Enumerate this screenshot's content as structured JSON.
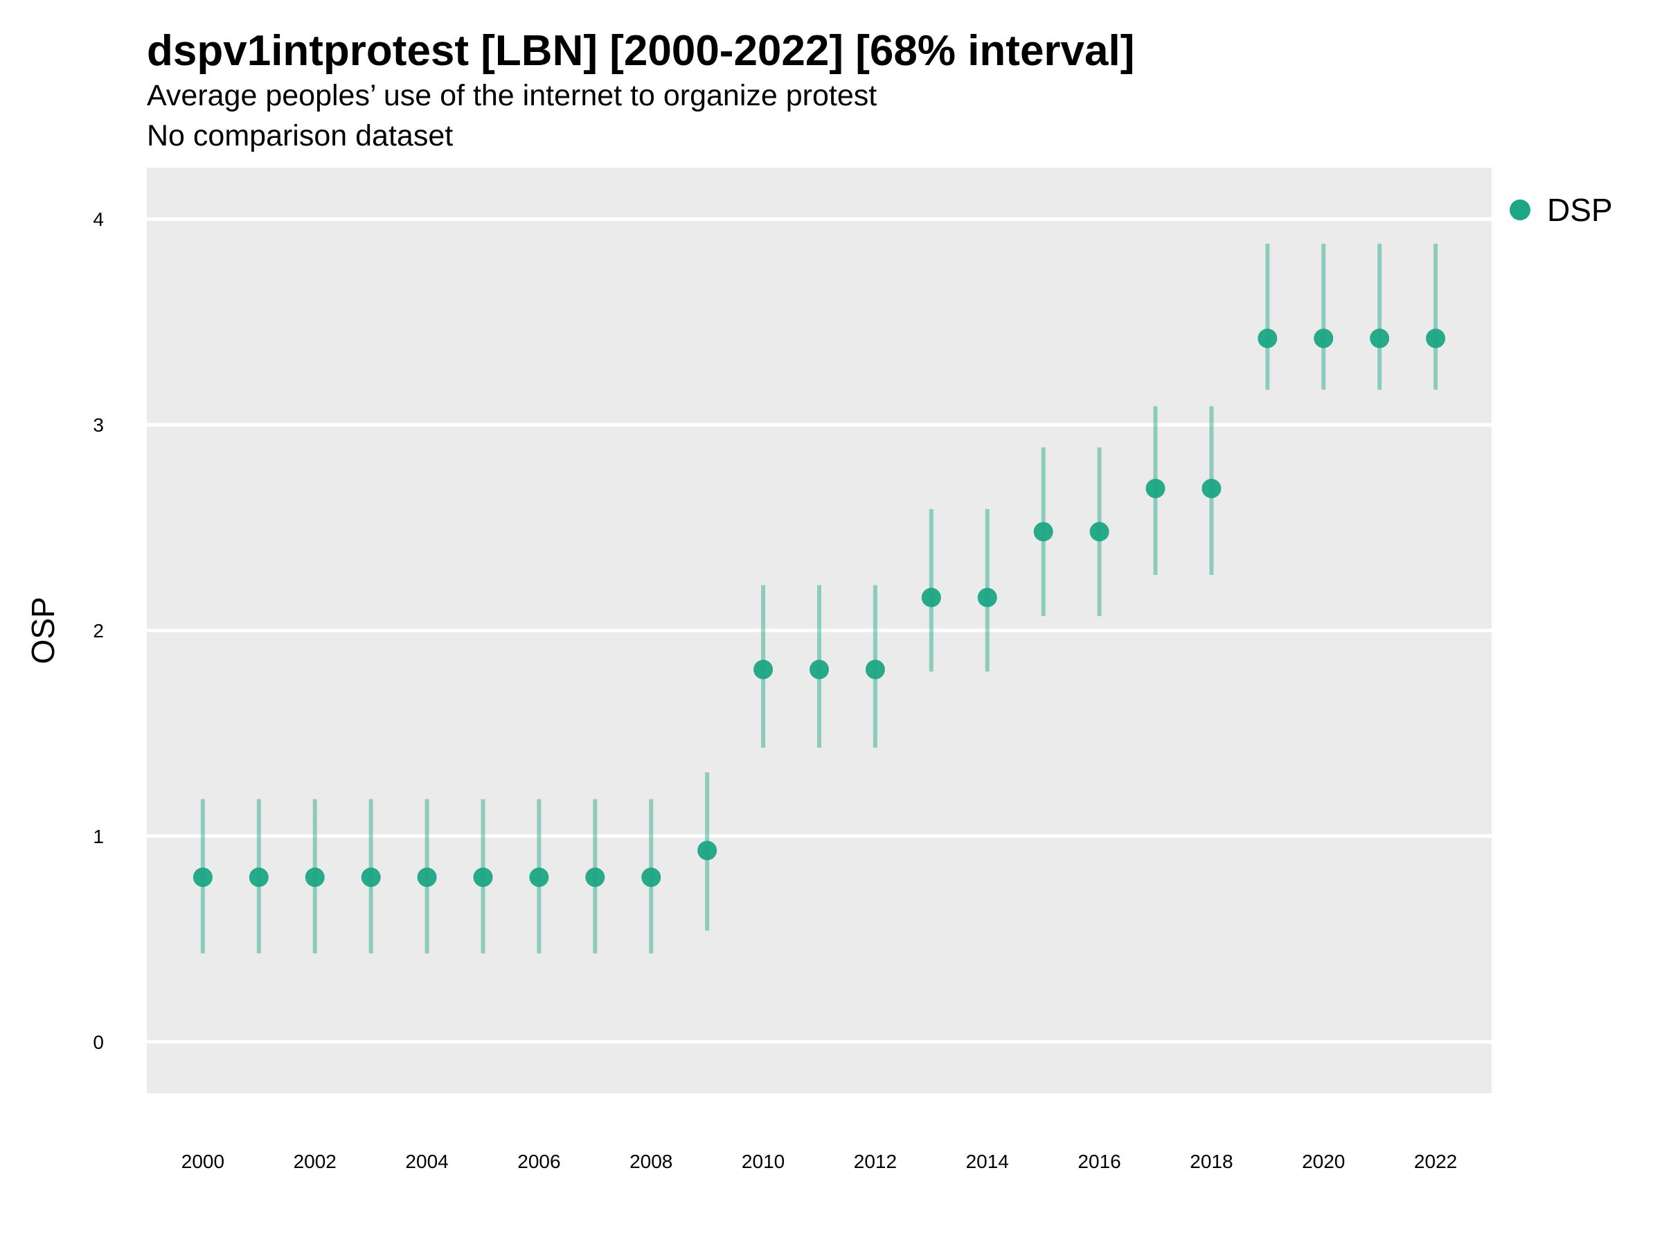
{
  "title": "dspv1intprotest [LBN] [2000-2022] [68% interval]",
  "subtitle": "Average peoples’ use of the internet to organize protest",
  "subtitle2": "No comparison dataset",
  "colors": {
    "point": "#1ba784",
    "panel": "#ebebeb",
    "grid": "#ffffff"
  },
  "chart_data": {
    "type": "scatter",
    "title": "dspv1intprotest [LBN] [2000-2022] [68% interval]",
    "ylabel": "OSP",
    "xlabel": "",
    "ylim": [
      -0.25,
      4.25
    ],
    "xlim": [
      1999.0,
      2023.0
    ],
    "y_ticks": [
      0,
      1,
      2,
      3,
      4
    ],
    "x_ticks": [
      2000,
      2002,
      2004,
      2006,
      2008,
      2010,
      2012,
      2014,
      2016,
      2018,
      2020,
      2022
    ],
    "grid": true,
    "legend_position": "right",
    "series": [
      {
        "name": "DSP",
        "x": [
          2000,
          2001,
          2002,
          2003,
          2004,
          2005,
          2006,
          2007,
          2008,
          2009,
          2010,
          2011,
          2012,
          2013,
          2014,
          2015,
          2016,
          2017,
          2018,
          2019,
          2020,
          2021,
          2022
        ],
        "y": [
          0.8,
          0.8,
          0.8,
          0.8,
          0.8,
          0.8,
          0.8,
          0.8,
          0.8,
          0.93,
          1.81,
          1.81,
          1.81,
          2.16,
          2.16,
          2.48,
          2.48,
          2.69,
          2.69,
          3.42,
          3.42,
          3.42,
          3.42
        ],
        "lower": [
          0.43,
          0.43,
          0.43,
          0.43,
          0.43,
          0.43,
          0.43,
          0.43,
          0.43,
          0.54,
          1.43,
          1.43,
          1.43,
          1.8,
          1.8,
          2.07,
          2.07,
          2.27,
          2.27,
          3.17,
          3.17,
          3.17,
          3.17
        ],
        "upper": [
          1.18,
          1.18,
          1.18,
          1.18,
          1.18,
          1.18,
          1.18,
          1.18,
          1.18,
          1.31,
          2.22,
          2.22,
          2.22,
          2.59,
          2.59,
          2.89,
          2.89,
          3.09,
          3.09,
          3.88,
          3.88,
          3.88,
          3.88
        ]
      }
    ]
  }
}
